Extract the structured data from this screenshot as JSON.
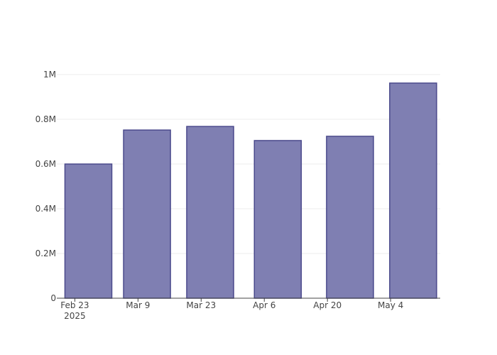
{
  "chart_data": {
    "type": "bar",
    "x": [
      "2025-02-26",
      "2025-03-11",
      "2025-03-25",
      "2025-04-09",
      "2025-04-25",
      "2025-05-09"
    ],
    "values": [
      600000,
      752000,
      768000,
      705000,
      724000,
      962000
    ],
    "color": "#7f7fb2",
    "line_color": "#4b4a8c",
    "xlim": [
      "2025-02-19",
      "2025-05-15"
    ],
    "xticks": [
      {
        "value": "2025-02-23",
        "label": "Feb 23\n2025"
      },
      {
        "value": "2025-03-09",
        "label": "Mar 9"
      },
      {
        "value": "2025-03-23",
        "label": "Mar 23"
      },
      {
        "value": "2025-04-06",
        "label": "Apr 6"
      },
      {
        "value": "2025-04-20",
        "label": "Apr 20"
      },
      {
        "value": "2025-05-04",
        "label": "May 4"
      }
    ],
    "ylim": [
      0,
      1016000
    ],
    "yticks": [
      0,
      {
        "value": 200000,
        "label": "0.2M"
      },
      {
        "value": 400000,
        "label": "0.4M"
      },
      {
        "value": 600000,
        "label": "0.6M"
      },
      {
        "value": 800000,
        "label": "0.8M"
      },
      {
        "value": 1000000,
        "label": "1M"
      }
    ],
    "grid": true
  }
}
